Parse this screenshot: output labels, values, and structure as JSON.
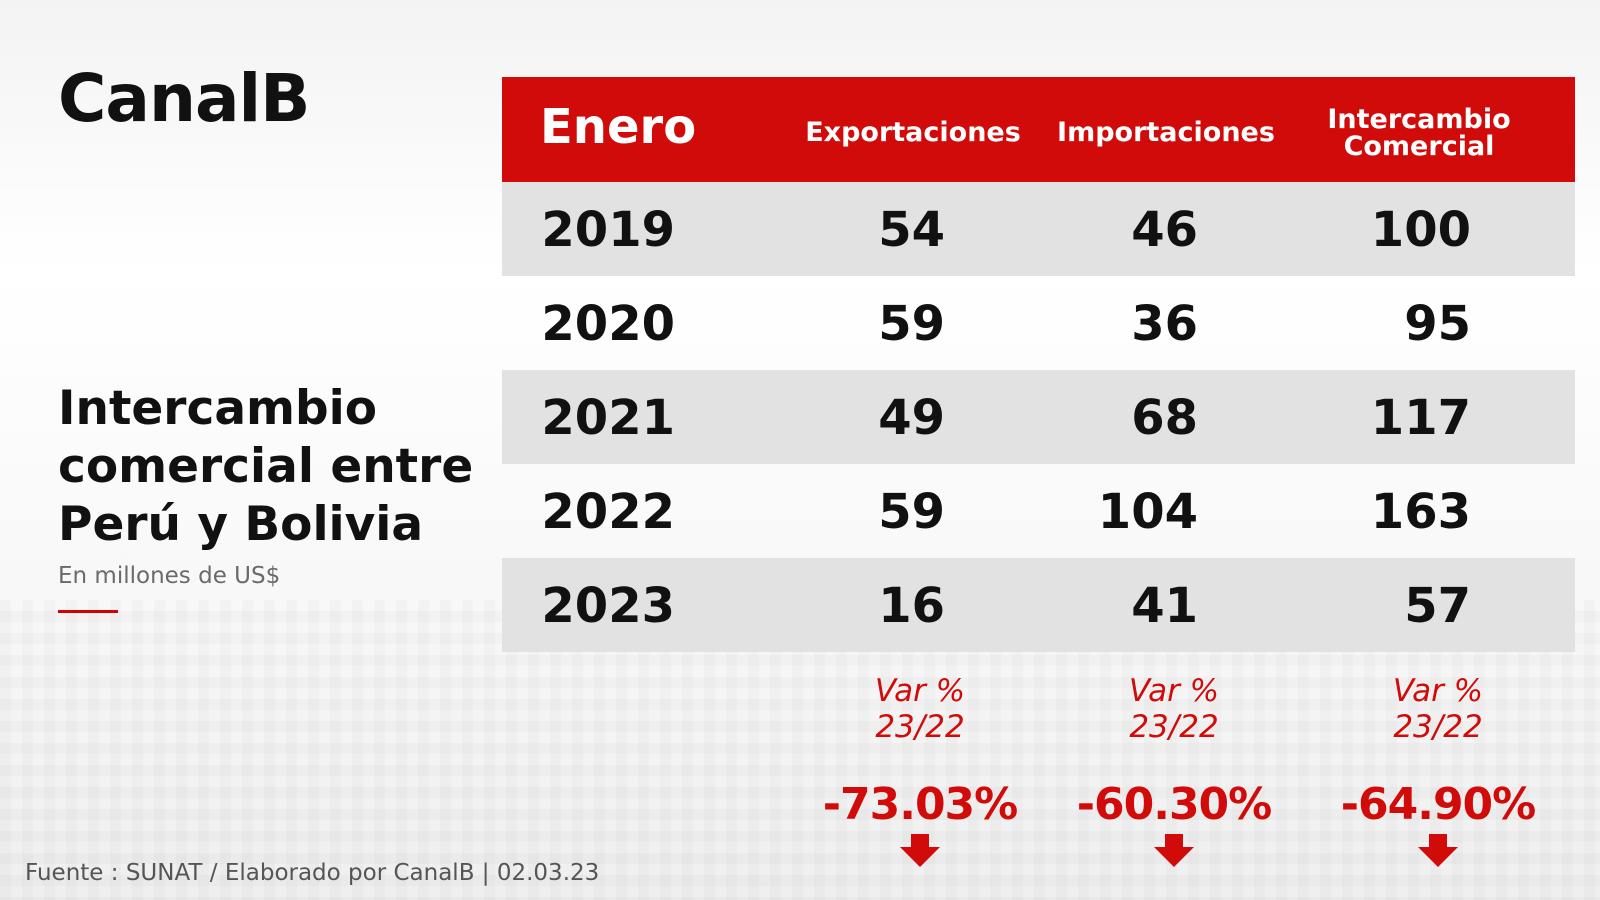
{
  "brand": "CanalB",
  "title_lines": [
    "Intercambio",
    "comercial entre",
    "Perú y Bolivia"
  ],
  "subtitle": "En millones de US$",
  "colors": {
    "accent": "#d10a0a",
    "shaded_row": "#e2e2e2",
    "text_dark": "#111111"
  },
  "chart_data": {
    "type": "table",
    "columns": [
      "Enero",
      "Exportaciones",
      "Importaciones",
      "Intercambio Comercial"
    ],
    "header_labels": {
      "period": "Enero",
      "exports": "Exportaciones",
      "imports": "Importaciones",
      "trade_line1": "Intercambio",
      "trade_line2": "Comercial"
    },
    "rows": [
      {
        "year": "2019",
        "exportaciones": "54",
        "importaciones": "46",
        "intercambio": "100"
      },
      {
        "year": "2020",
        "exportaciones": "59",
        "importaciones": "36",
        "intercambio": "95"
      },
      {
        "year": "2021",
        "exportaciones": "49",
        "importaciones": "68",
        "intercambio": "117"
      },
      {
        "year": "2022",
        "exportaciones": "59",
        "importaciones": "104",
        "intercambio": "163"
      },
      {
        "year": "2023",
        "exportaciones": "16",
        "importaciones": "41",
        "intercambio": "57"
      }
    ],
    "variations": [
      {
        "label_line1": "Var %",
        "label_line2": "23/22",
        "value": "-73.03%"
      },
      {
        "label_line1": "Var %",
        "label_line2": "23/22",
        "value": "-60.30%"
      },
      {
        "label_line1": "Var %",
        "label_line2": "23/22",
        "value": "-64.90%"
      }
    ]
  },
  "footer": "Fuente : SUNAT / Elaborado por CanalB  |  02.03.23"
}
